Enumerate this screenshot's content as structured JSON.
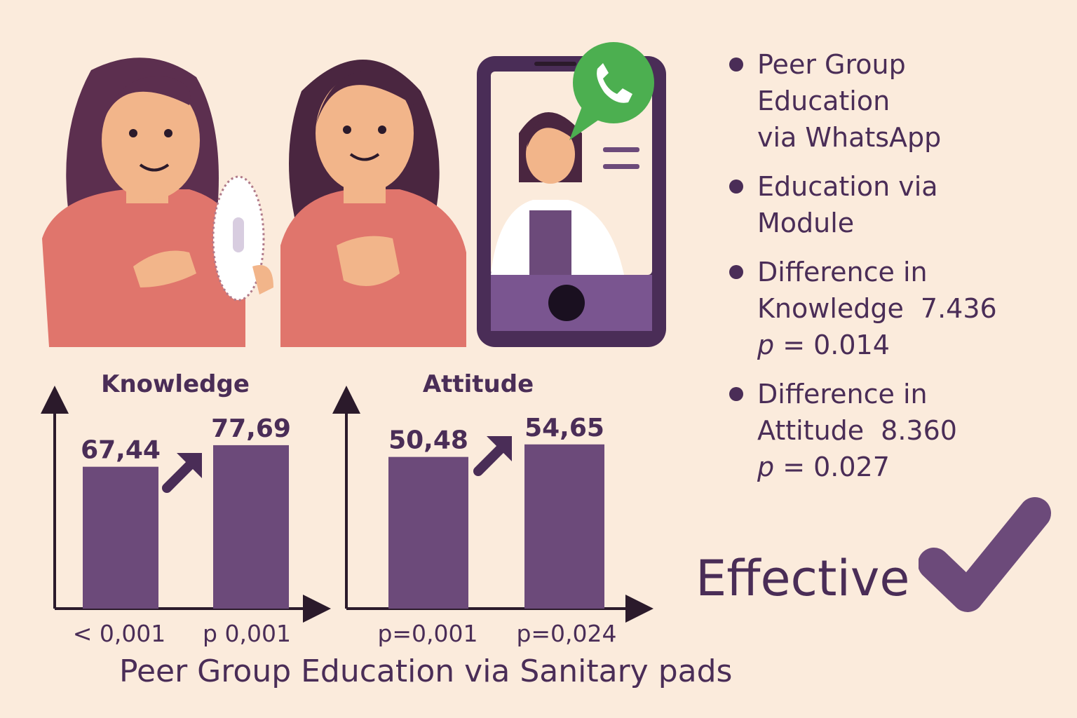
{
  "colors": {
    "background": "#fbebdc",
    "bar": "#6c4a7a",
    "text": "#4a2d57",
    "whatsapp": "#4caf50",
    "shirt": "#e0756c"
  },
  "illustration": {
    "icons": [
      "girl-holding-sanitary-pad",
      "girl-talking",
      "phone-icon",
      "doctor-avatar",
      "whatsapp-icon"
    ]
  },
  "chart_data": [
    {
      "type": "bar",
      "title": "Knowledge",
      "values": [
        67.44,
        77.69
      ],
      "value_labels": [
        "67,44",
        "77,69"
      ],
      "p_labels": [
        "< 0,001",
        "p 0,001"
      ],
      "ylim": [
        0,
        100
      ]
    },
    {
      "type": "bar",
      "title": "Attitude",
      "values": [
        50.48,
        54.65
      ],
      "value_labels": [
        "50,48",
        "54,65"
      ],
      "p_labels": [
        "p=0,001",
        "p=0,024"
      ],
      "ylim": [
        0,
        70
      ]
    }
  ],
  "footer": {
    "title": "Peer Group Education via Sanitary pads"
  },
  "bullets": [
    {
      "lines": [
        "Peer Group",
        "Education",
        "via WhatsApp"
      ]
    },
    {
      "lines": [
        "Education via",
        "Module"
      ]
    },
    {
      "line1": "Difference in",
      "label": "Knowledge",
      "value": "7.436",
      "p_prefix": "p",
      "p_rest": " = 0.014"
    },
    {
      "line1": "Difference in",
      "label": "Attitude",
      "value": "8.360",
      "p_prefix": "p",
      "p_rest": " = 0.027"
    }
  ],
  "conclusion": {
    "text": "Effective",
    "icon": "checkmark-icon"
  }
}
